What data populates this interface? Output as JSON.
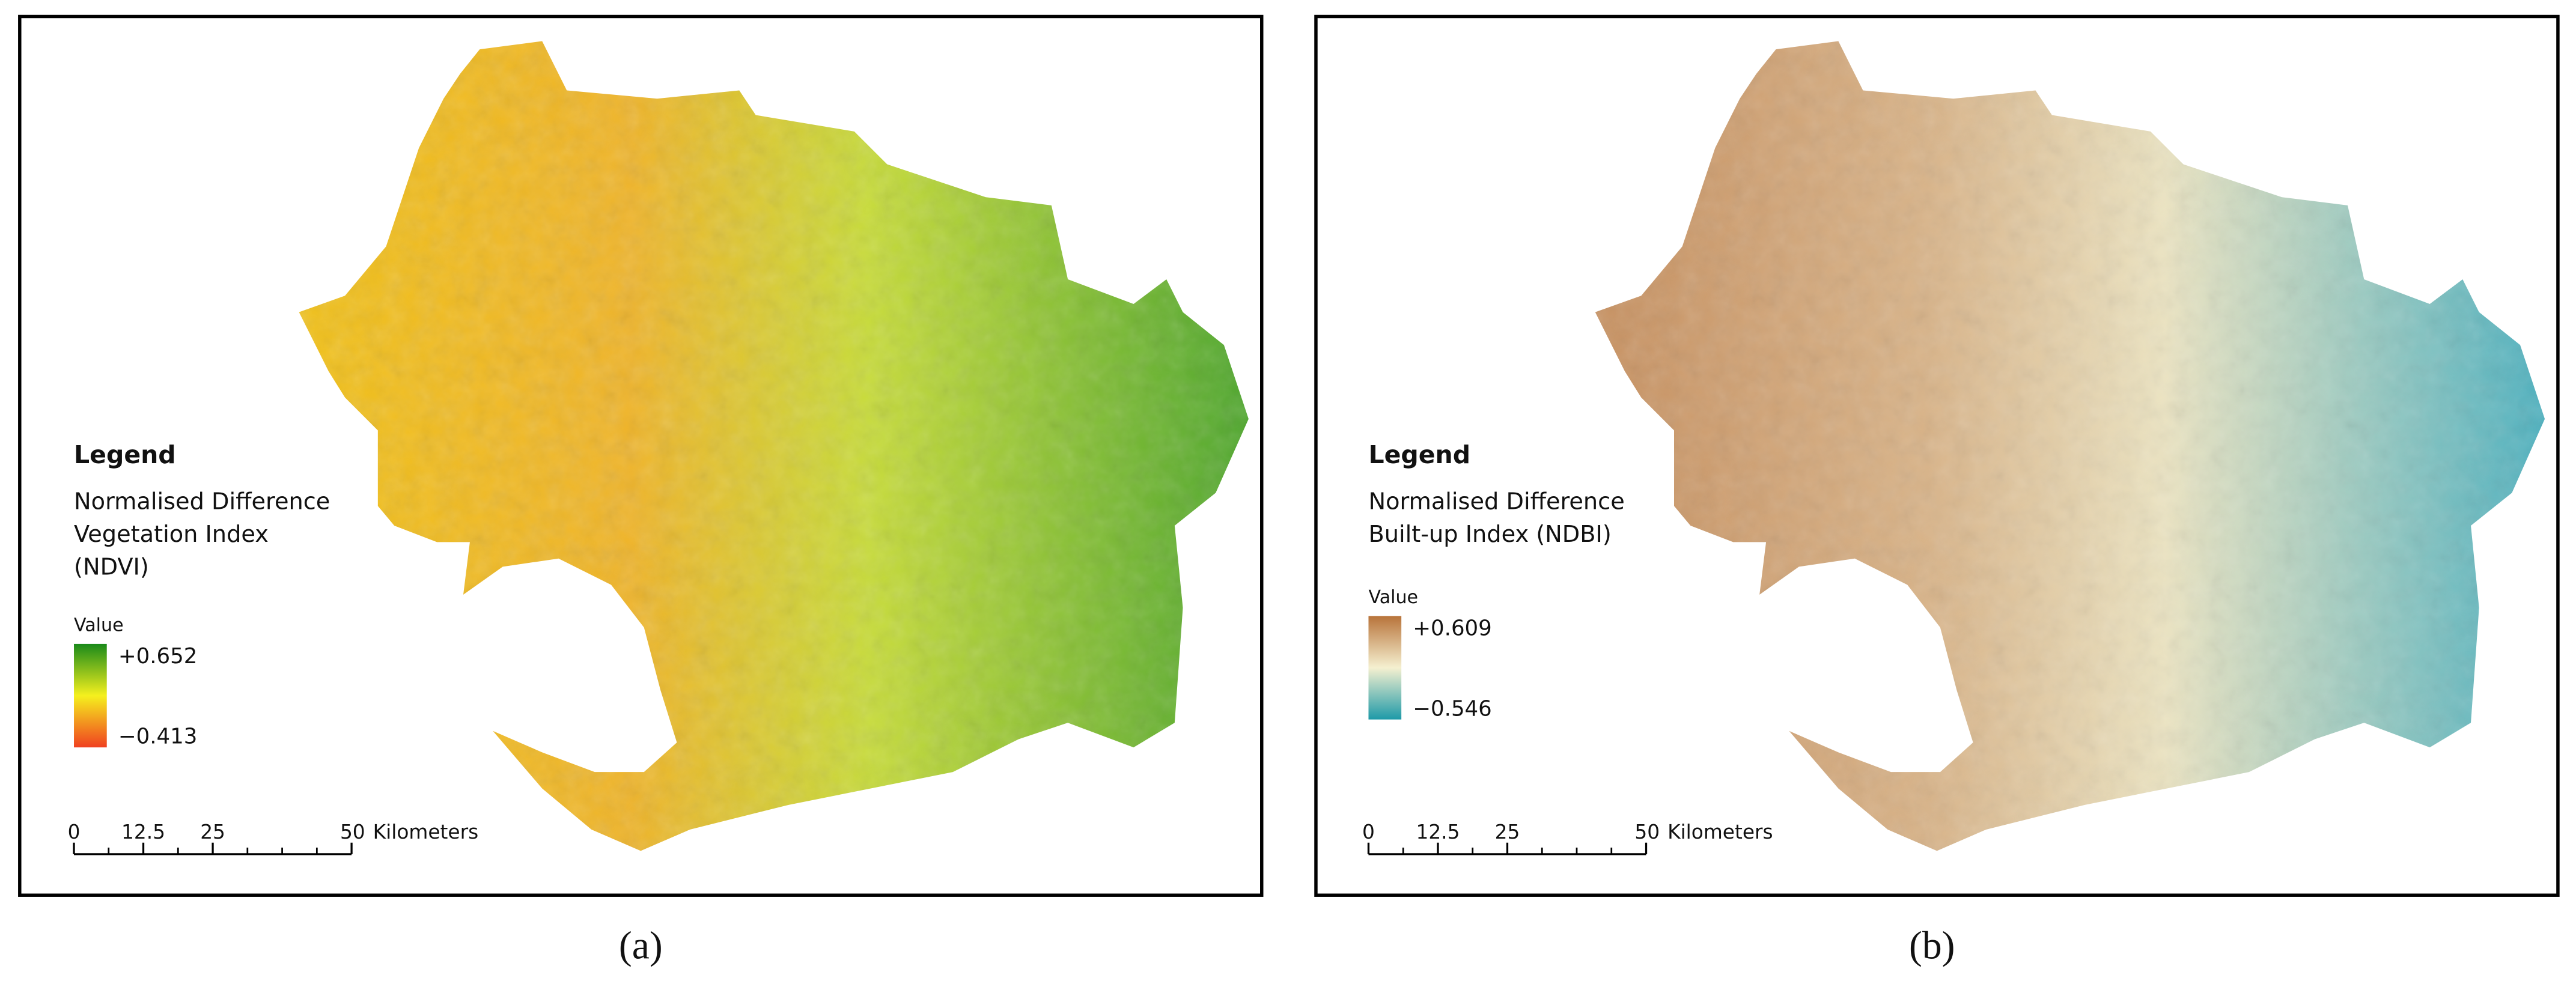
{
  "panels": [
    {
      "legend_title": "Legend",
      "description": [
        "Normalised Difference",
        "Vegetation Index",
        "(NDVI)"
      ],
      "value_title": "Value",
      "max_label": "+0.652",
      "min_label": "−0.413",
      "scale_ticks": [
        0,
        12.5,
        25,
        50
      ],
      "scale_unit": "Kilometers",
      "caption": "(a)"
    },
    {
      "legend_title": "Legend",
      "description": [
        "Normalised Difference",
        "Built-up Index (NDBI)"
      ],
      "value_title": "Value",
      "max_label": "+0.609",
      "min_label": "−0.546",
      "scale_ticks": [
        0,
        12.5,
        25,
        50
      ],
      "scale_unit": "Kilometers",
      "caption": "(b)"
    }
  ]
}
